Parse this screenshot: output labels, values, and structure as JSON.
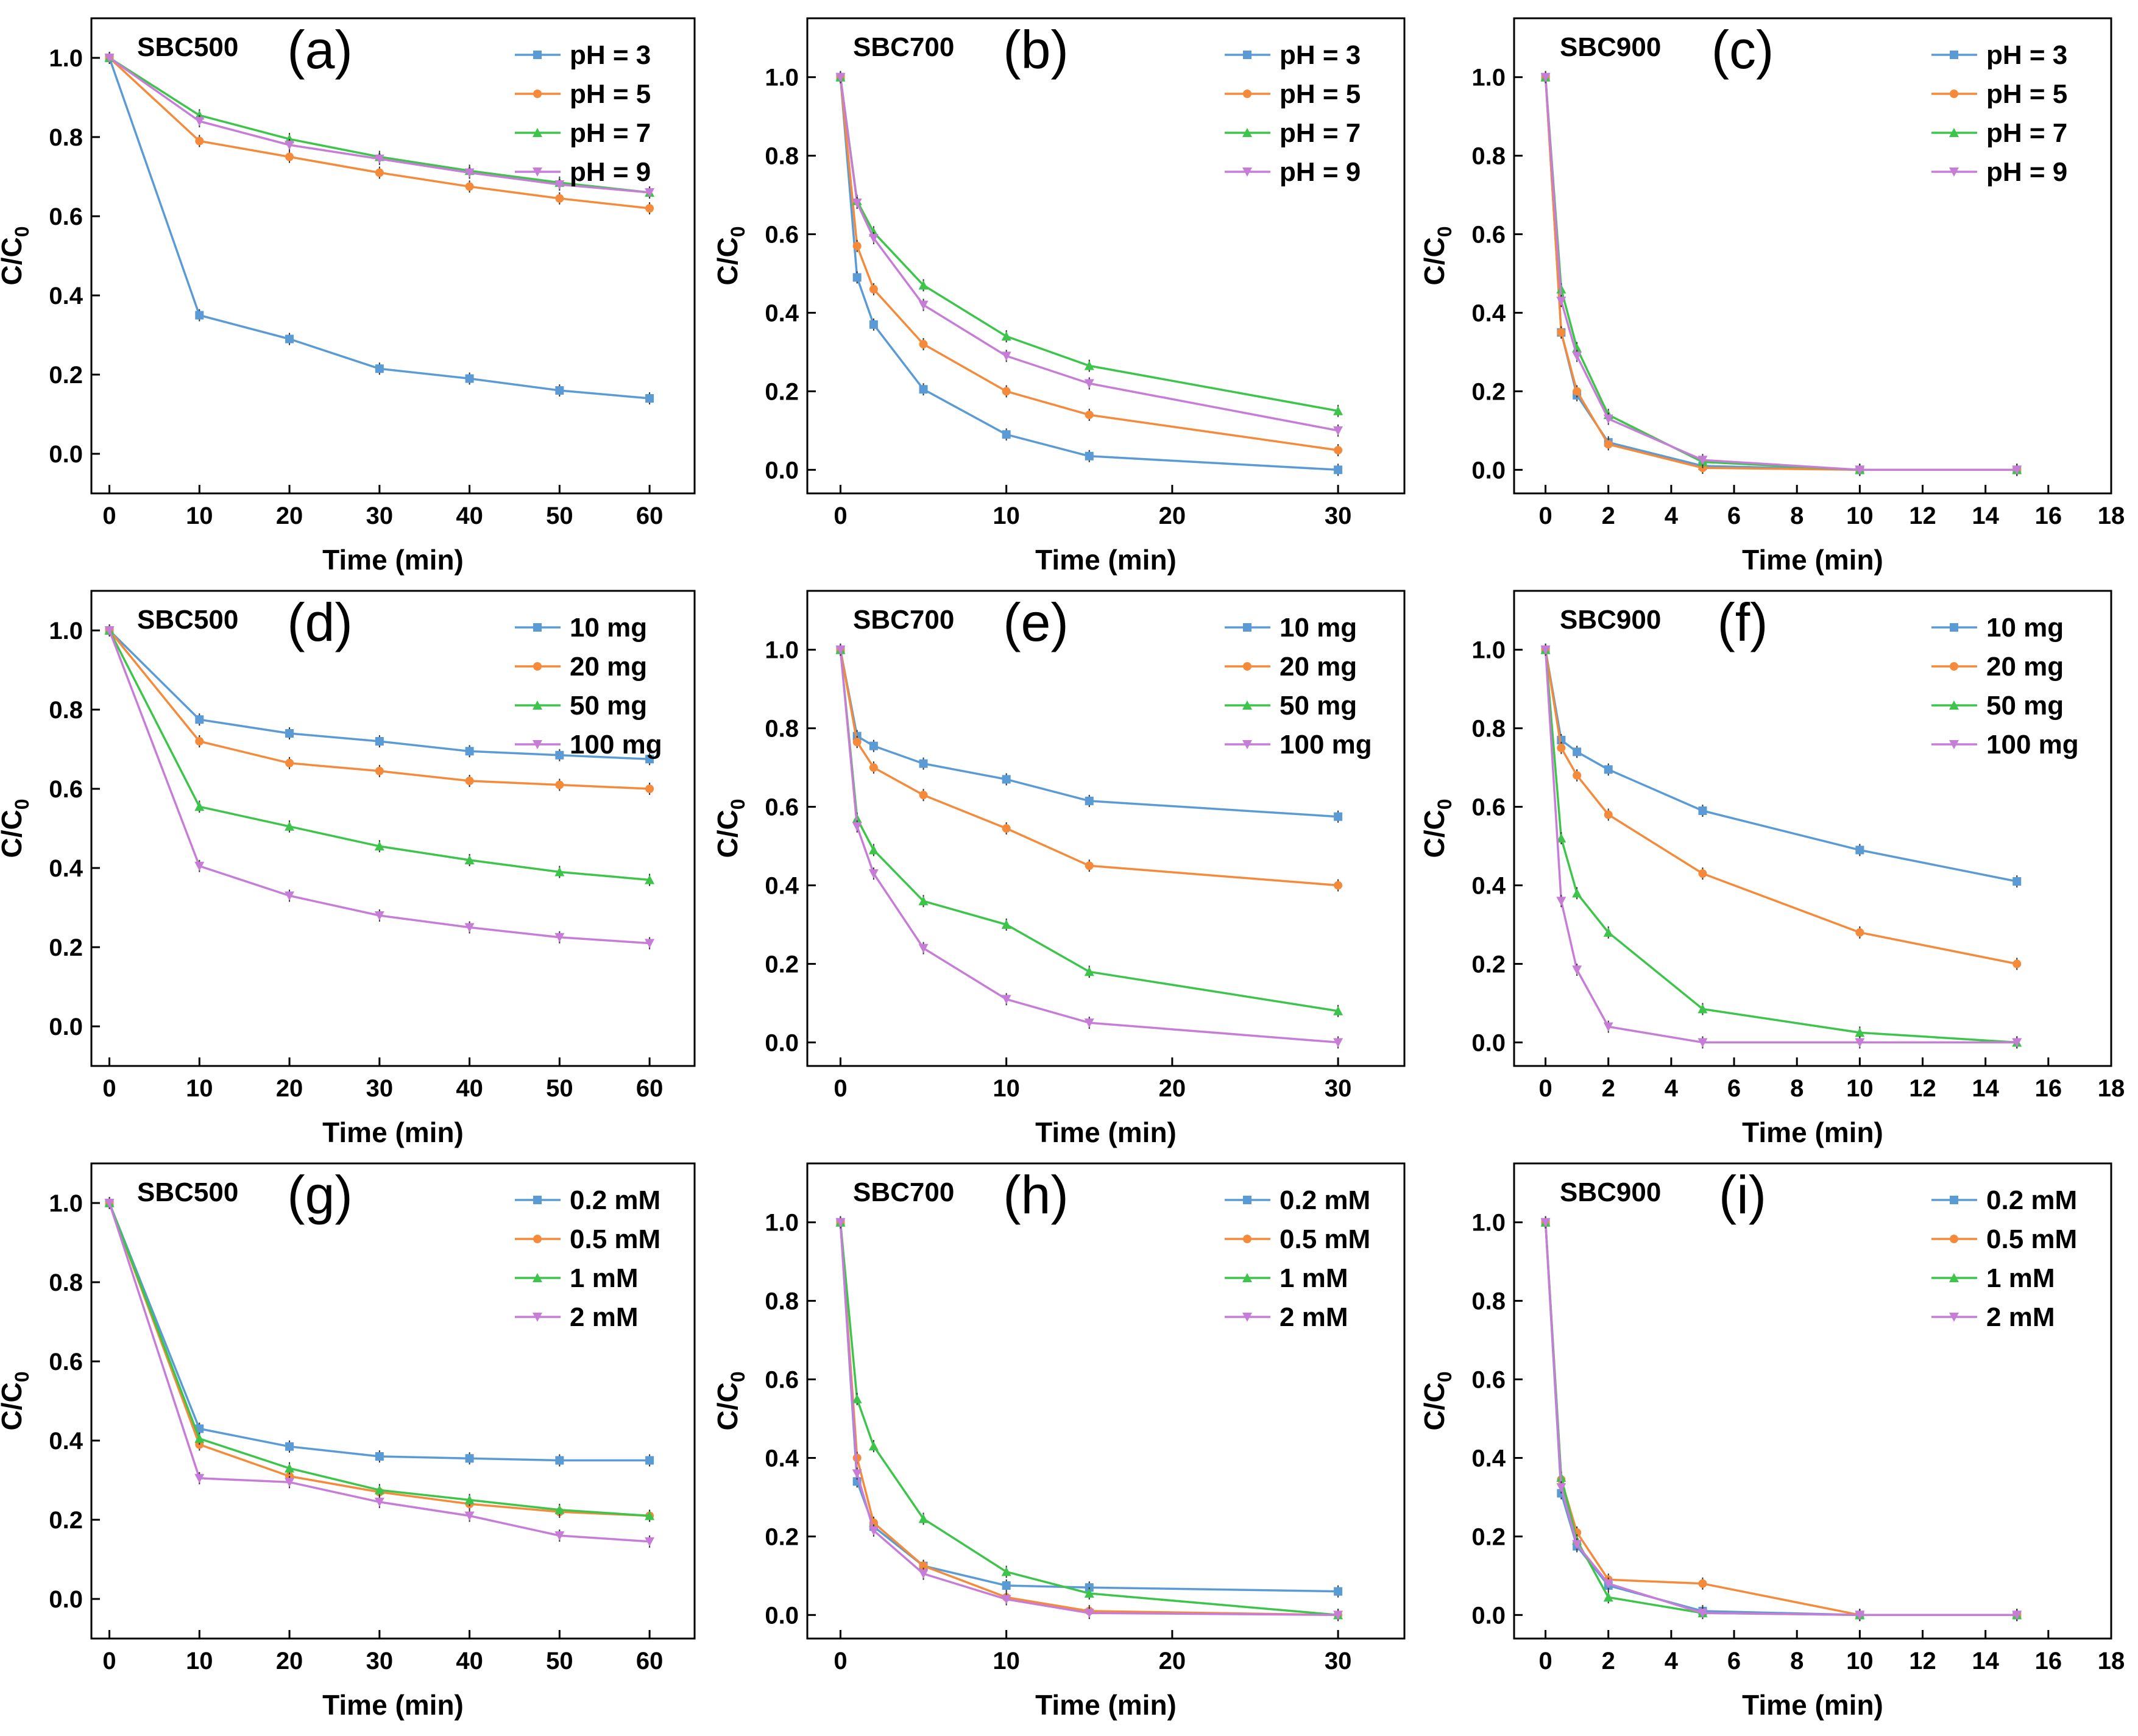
{
  "colors": {
    "s1": "#5b9bd5",
    "s2": "#f58a3a",
    "s3": "#3cc54a",
    "s4": "#c77dd8"
  },
  "chart_data": [
    {
      "type": "line",
      "panel_label": "(a)",
      "sample": "SBC500",
      "xlabel": "Time (min)",
      "ylabel": "C/C0",
      "xlim": [
        -2,
        65
      ],
      "ylim": [
        -0.1,
        1.1
      ],
      "xticks": [
        0,
        10,
        20,
        30,
        40,
        50,
        60
      ],
      "yticks": [
        0.0,
        0.2,
        0.4,
        0.6,
        0.8,
        1.0
      ],
      "legend": "top-right",
      "series": [
        {
          "name": "pH = 3",
          "x": [
            0,
            10,
            20,
            30,
            40,
            50,
            60
          ],
          "y": [
            1.0,
            0.35,
            0.29,
            0.215,
            0.19,
            0.16,
            0.14
          ]
        },
        {
          "name": "pH = 5",
          "x": [
            0,
            10,
            20,
            30,
            40,
            50,
            60
          ],
          "y": [
            1.0,
            0.79,
            0.75,
            0.71,
            0.675,
            0.645,
            0.62
          ]
        },
        {
          "name": "pH = 7",
          "x": [
            0,
            10,
            20,
            30,
            40,
            50,
            60
          ],
          "y": [
            1.0,
            0.855,
            0.795,
            0.75,
            0.715,
            0.685,
            0.66
          ]
        },
        {
          "name": "pH = 9",
          "x": [
            0,
            10,
            20,
            30,
            40,
            50,
            60
          ],
          "y": [
            1.0,
            0.84,
            0.78,
            0.745,
            0.71,
            0.68,
            0.66
          ]
        }
      ]
    },
    {
      "type": "line",
      "panel_label": "(b)",
      "sample": "SBC700",
      "xlabel": "Time (min)",
      "ylabel": "C/C0",
      "xlim": [
        -2,
        34
      ],
      "ylim": [
        -0.06,
        1.15
      ],
      "xticks": [
        0,
        10,
        20,
        30
      ],
      "yticks": [
        0.0,
        0.2,
        0.4,
        0.6,
        0.8,
        1.0
      ],
      "legend": "top-right",
      "series": [
        {
          "name": "pH = 3",
          "x": [
            0,
            1,
            2,
            5,
            10,
            15,
            30
          ],
          "y": [
            1.0,
            0.49,
            0.37,
            0.205,
            0.09,
            0.035,
            0.0
          ]
        },
        {
          "name": "pH = 5",
          "x": [
            0,
            1,
            2,
            5,
            10,
            15,
            30
          ],
          "y": [
            1.0,
            0.57,
            0.46,
            0.32,
            0.2,
            0.14,
            0.05
          ]
        },
        {
          "name": "pH = 7",
          "x": [
            0,
            1,
            2,
            5,
            10,
            15,
            30
          ],
          "y": [
            1.0,
            0.685,
            0.605,
            0.47,
            0.34,
            0.265,
            0.15
          ]
        },
        {
          "name": "pH = 9",
          "x": [
            0,
            1,
            2,
            5,
            10,
            15,
            30
          ],
          "y": [
            1.0,
            0.68,
            0.59,
            0.42,
            0.29,
            0.22,
            0.1
          ]
        }
      ]
    },
    {
      "type": "line",
      "panel_label": "(c)",
      "sample": "SBC900",
      "xlabel": "Time (min)",
      "ylabel": "C/C0",
      "xlim": [
        -1,
        18
      ],
      "ylim": [
        -0.06,
        1.15
      ],
      "xticks": [
        0,
        2,
        4,
        6,
        8,
        10,
        12,
        14,
        16,
        18
      ],
      "yticks": [
        0.0,
        0.2,
        0.4,
        0.6,
        0.8,
        1.0
      ],
      "legend": "top-right",
      "series": [
        {
          "name": "pH = 3",
          "x": [
            0,
            0.5,
            1,
            2,
            5,
            10,
            15
          ],
          "y": [
            1.0,
            0.35,
            0.19,
            0.07,
            0.01,
            0.0,
            0.0
          ]
        },
        {
          "name": "pH = 5",
          "x": [
            0,
            0.5,
            1,
            2,
            5,
            10,
            15
          ],
          "y": [
            1.0,
            0.35,
            0.2,
            0.065,
            0.005,
            0.0,
            0.0
          ]
        },
        {
          "name": "pH = 7",
          "x": [
            0,
            0.5,
            1,
            2,
            5,
            10,
            15
          ],
          "y": [
            1.0,
            0.46,
            0.31,
            0.14,
            0.02,
            0.0,
            0.0
          ]
        },
        {
          "name": "pH = 9",
          "x": [
            0,
            0.5,
            1,
            2,
            5,
            10,
            15
          ],
          "y": [
            1.0,
            0.43,
            0.29,
            0.13,
            0.025,
            0.0,
            0.0
          ]
        }
      ]
    },
    {
      "type": "line",
      "panel_label": "(d)",
      "sample": "SBC500",
      "xlabel": "Time (min)",
      "ylabel": "C/C0",
      "xlim": [
        -2,
        65
      ],
      "ylim": [
        -0.1,
        1.1
      ],
      "xticks": [
        0,
        10,
        20,
        30,
        40,
        50,
        60
      ],
      "yticks": [
        0.0,
        0.2,
        0.4,
        0.6,
        0.8,
        1.0
      ],
      "legend": "top-right",
      "series": [
        {
          "name": "10 mg",
          "x": [
            0,
            10,
            20,
            30,
            40,
            50,
            60
          ],
          "y": [
            1.0,
            0.775,
            0.74,
            0.72,
            0.695,
            0.685,
            0.675
          ]
        },
        {
          "name": "20 mg",
          "x": [
            0,
            10,
            20,
            30,
            40,
            50,
            60
          ],
          "y": [
            1.0,
            0.72,
            0.665,
            0.645,
            0.62,
            0.61,
            0.6
          ]
        },
        {
          "name": "50 mg",
          "x": [
            0,
            10,
            20,
            30,
            40,
            50,
            60
          ],
          "y": [
            1.0,
            0.555,
            0.505,
            0.455,
            0.42,
            0.39,
            0.37
          ]
        },
        {
          "name": "100 mg",
          "x": [
            0,
            10,
            20,
            30,
            40,
            50,
            60
          ],
          "y": [
            1.0,
            0.405,
            0.33,
            0.28,
            0.25,
            0.225,
            0.21
          ]
        }
      ]
    },
    {
      "type": "line",
      "panel_label": "(e)",
      "sample": "SBC700",
      "xlabel": "Time (min)",
      "ylabel": "C/C0",
      "xlim": [
        -2,
        34
      ],
      "ylim": [
        -0.06,
        1.15
      ],
      "xticks": [
        0,
        10,
        20,
        30
      ],
      "yticks": [
        0.0,
        0.2,
        0.4,
        0.6,
        0.8,
        1.0
      ],
      "legend": "top-right",
      "series": [
        {
          "name": "10 mg",
          "x": [
            0,
            1,
            2,
            5,
            10,
            15,
            30
          ],
          "y": [
            1.0,
            0.78,
            0.755,
            0.71,
            0.67,
            0.615,
            0.575
          ]
        },
        {
          "name": "20 mg",
          "x": [
            0,
            1,
            2,
            5,
            10,
            15,
            30
          ],
          "y": [
            1.0,
            0.765,
            0.7,
            0.63,
            0.545,
            0.45,
            0.4
          ]
        },
        {
          "name": "50 mg",
          "x": [
            0,
            1,
            2,
            5,
            10,
            15,
            30
          ],
          "y": [
            1.0,
            0.57,
            0.49,
            0.36,
            0.3,
            0.18,
            0.08
          ]
        },
        {
          "name": "100 mg",
          "x": [
            0,
            1,
            2,
            5,
            10,
            15,
            30
          ],
          "y": [
            1.0,
            0.55,
            0.43,
            0.24,
            0.11,
            0.05,
            0.0
          ]
        }
      ]
    },
    {
      "type": "line",
      "panel_label": "(f)",
      "sample": "SBC900",
      "xlabel": "Time (min)",
      "ylabel": "C/C0",
      "xlim": [
        -1,
        18
      ],
      "ylim": [
        -0.06,
        1.15
      ],
      "xticks": [
        0,
        2,
        4,
        6,
        8,
        10,
        12,
        14,
        16,
        18
      ],
      "yticks": [
        0.0,
        0.2,
        0.4,
        0.6,
        0.8,
        1.0
      ],
      "legend": "top-right",
      "series": [
        {
          "name": "10 mg",
          "x": [
            0,
            0.5,
            1,
            2,
            5,
            10,
            15
          ],
          "y": [
            1.0,
            0.77,
            0.74,
            0.695,
            0.59,
            0.49,
            0.41
          ]
        },
        {
          "name": "20 mg",
          "x": [
            0,
            0.5,
            1,
            2,
            5,
            10,
            15
          ],
          "y": [
            1.0,
            0.75,
            0.68,
            0.58,
            0.43,
            0.28,
            0.2
          ]
        },
        {
          "name": "50 mg",
          "x": [
            0,
            0.5,
            1,
            2,
            5,
            10,
            15
          ],
          "y": [
            1.0,
            0.52,
            0.38,
            0.28,
            0.085,
            0.025,
            0.0
          ]
        },
        {
          "name": "100 mg",
          "x": [
            0,
            0.5,
            1,
            2,
            5,
            10,
            15
          ],
          "y": [
            1.0,
            0.36,
            0.185,
            0.04,
            0.0,
            0.0,
            0.0
          ]
        }
      ]
    },
    {
      "type": "line",
      "panel_label": "(g)",
      "sample": "SBC500",
      "xlabel": "Time (min)",
      "ylabel": "C/C0",
      "xlim": [
        -2,
        65
      ],
      "ylim": [
        -0.1,
        1.1
      ],
      "xticks": [
        0,
        10,
        20,
        30,
        40,
        50,
        60
      ],
      "yticks": [
        0.0,
        0.2,
        0.4,
        0.6,
        0.8,
        1.0
      ],
      "legend": "top-right",
      "series": [
        {
          "name": "0.2 mM",
          "x": [
            0,
            10,
            20,
            30,
            40,
            50,
            60
          ],
          "y": [
            1.0,
            0.43,
            0.385,
            0.36,
            0.355,
            0.35,
            0.35
          ]
        },
        {
          "name": "0.5 mM",
          "x": [
            0,
            10,
            20,
            30,
            40,
            50,
            60
          ],
          "y": [
            1.0,
            0.39,
            0.31,
            0.27,
            0.24,
            0.22,
            0.21
          ]
        },
        {
          "name": "1 mM",
          "x": [
            0,
            10,
            20,
            30,
            40,
            50,
            60
          ],
          "y": [
            1.0,
            0.405,
            0.33,
            0.275,
            0.25,
            0.225,
            0.21
          ]
        },
        {
          "name": "2 mM",
          "x": [
            0,
            10,
            20,
            30,
            40,
            50,
            60
          ],
          "y": [
            1.0,
            0.305,
            0.295,
            0.245,
            0.21,
            0.16,
            0.145
          ]
        }
      ]
    },
    {
      "type": "line",
      "panel_label": "(h)",
      "sample": "SBC700",
      "xlabel": "Time (min)",
      "ylabel": "C/C0",
      "xlim": [
        -2,
        34
      ],
      "ylim": [
        -0.06,
        1.15
      ],
      "xticks": [
        0,
        10,
        20,
        30
      ],
      "yticks": [
        0.0,
        0.2,
        0.4,
        0.6,
        0.8,
        1.0
      ],
      "legend": "top-right",
      "series": [
        {
          "name": "0.2 mM",
          "x": [
            0,
            1,
            2,
            5,
            10,
            15,
            30
          ],
          "y": [
            1.0,
            0.34,
            0.225,
            0.125,
            0.075,
            0.07,
            0.06
          ]
        },
        {
          "name": "0.5 mM",
          "x": [
            0,
            1,
            2,
            5,
            10,
            15,
            30
          ],
          "y": [
            1.0,
            0.4,
            0.235,
            0.125,
            0.045,
            0.01,
            0.0
          ]
        },
        {
          "name": "1 mM",
          "x": [
            0,
            1,
            2,
            5,
            10,
            15,
            30
          ],
          "y": [
            1.0,
            0.55,
            0.43,
            0.245,
            0.11,
            0.055,
            0.0
          ]
        },
        {
          "name": "2 mM",
          "x": [
            0,
            1,
            2,
            5,
            10,
            15,
            30
          ],
          "y": [
            1.0,
            0.36,
            0.215,
            0.105,
            0.04,
            0.005,
            0.0
          ]
        }
      ]
    },
    {
      "type": "line",
      "panel_label": "(i)",
      "sample": "SBC900",
      "xlabel": "Time (min)",
      "ylabel": "C/C0",
      "xlim": [
        -1,
        18
      ],
      "ylim": [
        -0.06,
        1.15
      ],
      "xticks": [
        0,
        2,
        4,
        6,
        8,
        10,
        12,
        14,
        16,
        18
      ],
      "yticks": [
        0.0,
        0.2,
        0.4,
        0.6,
        0.8,
        1.0
      ],
      "legend": "top-right",
      "series": [
        {
          "name": "0.2 mM",
          "x": [
            0,
            0.5,
            1,
            2,
            5,
            10,
            15
          ],
          "y": [
            1.0,
            0.31,
            0.175,
            0.075,
            0.01,
            0.0,
            0.0
          ]
        },
        {
          "name": "0.5 mM",
          "x": [
            0,
            0.5,
            1,
            2,
            5,
            10,
            15
          ],
          "y": [
            1.0,
            0.345,
            0.21,
            0.09,
            0.08,
            0.0,
            0.0
          ]
        },
        {
          "name": "1 mM",
          "x": [
            0,
            0.5,
            1,
            2,
            5,
            10,
            15
          ],
          "y": [
            1.0,
            0.35,
            0.19,
            0.045,
            0.005,
            0.0,
            0.0
          ]
        },
        {
          "name": "2 mM",
          "x": [
            0,
            0.5,
            1,
            2,
            5,
            10,
            15
          ],
          "y": [
            1.0,
            0.325,
            0.18,
            0.08,
            0.005,
            0.0,
            0.0
          ]
        }
      ]
    }
  ]
}
